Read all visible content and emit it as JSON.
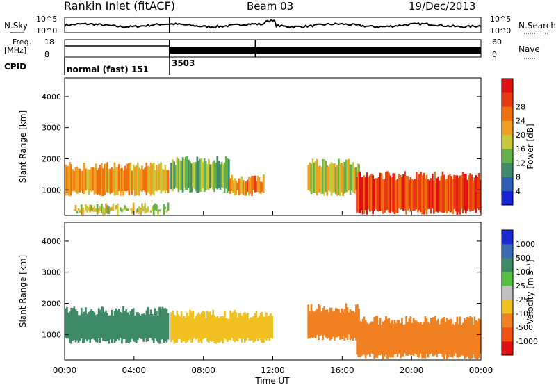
{
  "header": {
    "station": "Rankin Inlet (fitACF)",
    "beam": "Beam 03",
    "date": "19/Dec/2013"
  },
  "summary": {
    "nsky_label": "N.Sky",
    "nsky_ticks": [
      "10^5",
      "10^0"
    ],
    "nsearch_label": "N.Search",
    "nsearch_ticks": [
      "10^5",
      "10^0"
    ],
    "freq_label": "Freq.",
    "freq_unit": "[MHz]",
    "freq_ticks": [
      "18",
      "8"
    ],
    "nave_label": "Nave",
    "nave_ticks": [
      "60",
      "0"
    ],
    "cpid_label": "CPID",
    "cpid_entries": [
      {
        "name": "normal (fast) 151",
        "start_hour": 0.0,
        "end_hour": 6.05
      },
      {
        "name": "3503",
        "start_hour": 6.05,
        "end_hour": 24.0
      }
    ]
  },
  "axes": {
    "xlabel": "Time UT",
    "xticks": [
      "00:00",
      "04:00",
      "08:00",
      "12:00",
      "16:00",
      "20:00",
      "00:00"
    ],
    "ylabel": "Slant Range [km]",
    "yticks": [
      "1000",
      "2000",
      "3000",
      "4000"
    ]
  },
  "colorbars": {
    "power": {
      "label": "Power [dB]",
      "ticks": [
        "4",
        "8",
        "12",
        "16",
        "20",
        "24",
        "28"
      ],
      "colors": [
        "#1a22d8",
        "#2e5fb8",
        "#3f8a6a",
        "#64b04a",
        "#c8c83a",
        "#f0a020",
        "#f07010",
        "#e83a10",
        "#e01010"
      ]
    },
    "velocity": {
      "label": "Velocity [m s⁻¹]",
      "ticks": [
        "1000",
        "500",
        "100",
        "25",
        "-25",
        "-100",
        "-500",
        "-1000"
      ],
      "colors": [
        "#1a2ad0",
        "#3a6ab0",
        "#3e8a66",
        "#54c040",
        "#c0c0c0",
        "#f0c020",
        "#f08020",
        "#f05010",
        "#e01010"
      ]
    }
  },
  "chart_data": [
    {
      "type": "heatmap",
      "title": "Power",
      "x_range_hours": [
        0,
        24
      ],
      "ylim_km": [
        180,
        4600
      ],
      "bands": [
        {
          "t0": 0.0,
          "t1": 6.0,
          "r0": 800,
          "r1": 1900,
          "value_db": 22
        },
        {
          "t0": 0.5,
          "t1": 6.0,
          "r0": 180,
          "r1": 600,
          "value_db": 18
        },
        {
          "t0": 6.1,
          "t1": 9.5,
          "r0": 900,
          "r1": 2100,
          "value_db": 14
        },
        {
          "t0": 9.5,
          "t1": 11.5,
          "r0": 800,
          "r1": 1500,
          "value_db": 24
        },
        {
          "t0": 14.0,
          "t1": 17.0,
          "r0": 800,
          "r1": 2000,
          "value_db": 18
        },
        {
          "t0": 16.8,
          "t1": 24.0,
          "r0": 200,
          "r1": 1600,
          "value_db": 29
        }
      ]
    },
    {
      "type": "heatmap",
      "title": "Velocity",
      "x_range_hours": [
        0,
        24
      ],
      "ylim_km": [
        180,
        4600
      ],
      "bands": [
        {
          "t0": 0.0,
          "t1": 6.0,
          "r0": 700,
          "r1": 1900,
          "value_ms": 60
        },
        {
          "t0": 6.1,
          "t1": 12.0,
          "r0": 700,
          "r1": 1800,
          "value_ms": -80
        },
        {
          "t0": 14.0,
          "t1": 17.0,
          "r0": 800,
          "r1": 2000,
          "value_ms": -150
        },
        {
          "t0": 16.8,
          "t1": 24.0,
          "r0": 200,
          "r1": 1600,
          "value_ms": -250
        }
      ]
    }
  ]
}
